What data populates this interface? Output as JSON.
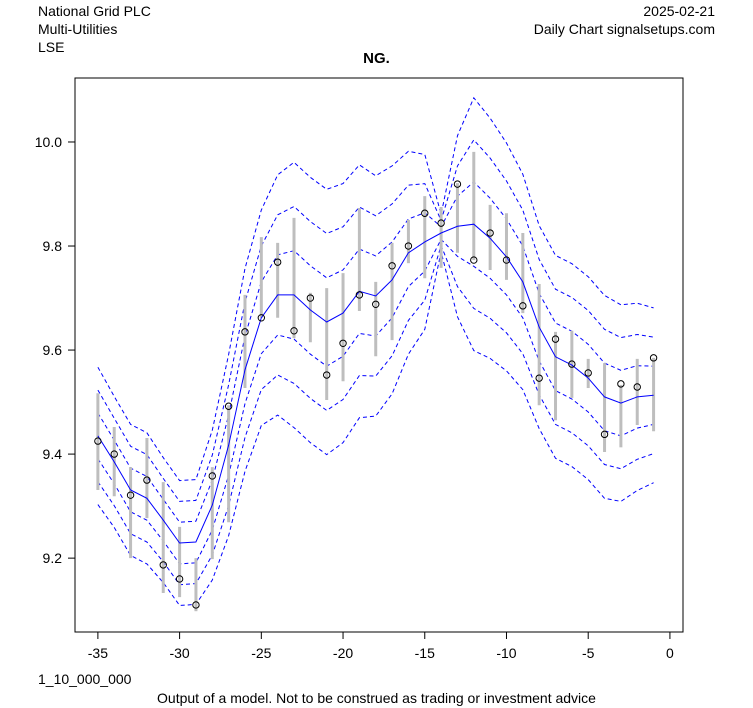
{
  "header": {
    "company": "National Grid PLC",
    "sector": "Multi-Utilities",
    "exchange": "LSE",
    "date": "2025-02-21",
    "source": "Daily Chart signalsetups.com"
  },
  "footer": {
    "code": "1_10_000_000",
    "disclaimer": "Output of a model. Not to be construed as trading or investment advice"
  },
  "colors": {
    "bands": "#0000ff",
    "center": "#0000ff",
    "range_bars": "#bebebe",
    "points": "#000000"
  },
  "chart_data": {
    "type": "line",
    "title": "NG.",
    "xlabel": "",
    "ylabel": "",
    "xlim": [
      -36.4,
      0.8
    ],
    "ylim": [
      9.058,
      10.123
    ],
    "xticks": [
      -35,
      -30,
      -25,
      -20,
      -15,
      -10,
      -5,
      0
    ],
    "yticks": [
      9.2,
      9.4,
      9.6,
      9.8,
      10.0
    ],
    "ytick_labels": [
      "9.2",
      "9.4",
      "9.6",
      "9.8",
      "10.0"
    ],
    "grid": false,
    "x": [
      -35,
      -34,
      -33,
      -32,
      -31,
      -30,
      -29,
      -28,
      -27,
      -26,
      -25,
      -24,
      -23,
      -22,
      -21,
      -20,
      -19,
      -18,
      -17,
      -16,
      -15,
      -14,
      -13,
      -12,
      -11,
      -10,
      -9,
      -8,
      -7,
      -6,
      -5,
      -4,
      -3,
      -2,
      -1
    ],
    "close": [
      9.425,
      9.4,
      9.321,
      9.35,
      9.187,
      9.16,
      9.11,
      9.358,
      9.492,
      9.635,
      9.662,
      9.769,
      9.637,
      9.7,
      9.552,
      9.613,
      9.706,
      9.688,
      9.762,
      9.8,
      9.863,
      9.844,
      9.919,
      9.773,
      9.825,
      9.773,
      9.685,
      9.546,
      9.621,
      9.573,
      9.556,
      9.438,
      9.535,
      9.529,
      9.585
    ],
    "high": [
      9.517,
      9.452,
      9.375,
      9.431,
      9.346,
      9.26,
      9.2,
      9.375,
      9.494,
      9.706,
      9.817,
      9.806,
      9.854,
      9.71,
      9.719,
      9.748,
      9.873,
      9.731,
      9.806,
      9.85,
      9.896,
      9.875,
      9.921,
      9.981,
      9.879,
      9.863,
      9.825,
      9.727,
      9.635,
      9.637,
      9.583,
      9.575,
      9.533,
      9.583,
      9.585
    ],
    "low": [
      9.331,
      9.319,
      9.2,
      9.277,
      9.133,
      9.125,
      9.098,
      9.198,
      9.269,
      9.527,
      9.662,
      9.662,
      9.623,
      9.615,
      9.504,
      9.54,
      9.675,
      9.588,
      9.619,
      9.767,
      9.738,
      9.758,
      9.787,
      9.773,
      9.754,
      9.735,
      9.671,
      9.494,
      9.465,
      9.508,
      9.527,
      9.404,
      9.413,
      9.456,
      9.444
    ],
    "center": [
      9.435,
      9.385,
      9.331,
      9.315,
      9.273,
      9.229,
      9.231,
      9.302,
      9.417,
      9.562,
      9.662,
      9.706,
      9.706,
      9.677,
      9.654,
      9.671,
      9.713,
      9.704,
      9.735,
      9.787,
      9.808,
      9.825,
      9.838,
      9.842,
      9.815,
      9.779,
      9.731,
      9.644,
      9.587,
      9.571,
      9.546,
      9.51,
      9.498,
      9.51,
      9.513
    ],
    "band_step": [
      0.044,
      0.042,
      0.042,
      0.042,
      0.04,
      0.04,
      0.04,
      0.048,
      0.058,
      0.065,
      0.069,
      0.077,
      0.085,
      0.085,
      0.085,
      0.083,
      0.081,
      0.077,
      0.073,
      0.065,
      0.056,
      0.012,
      0.058,
      0.081,
      0.077,
      0.073,
      0.069,
      0.065,
      0.065,
      0.065,
      0.065,
      0.065,
      0.063,
      0.06,
      0.056
    ],
    "band_multiples": [
      1,
      2,
      3
    ]
  }
}
